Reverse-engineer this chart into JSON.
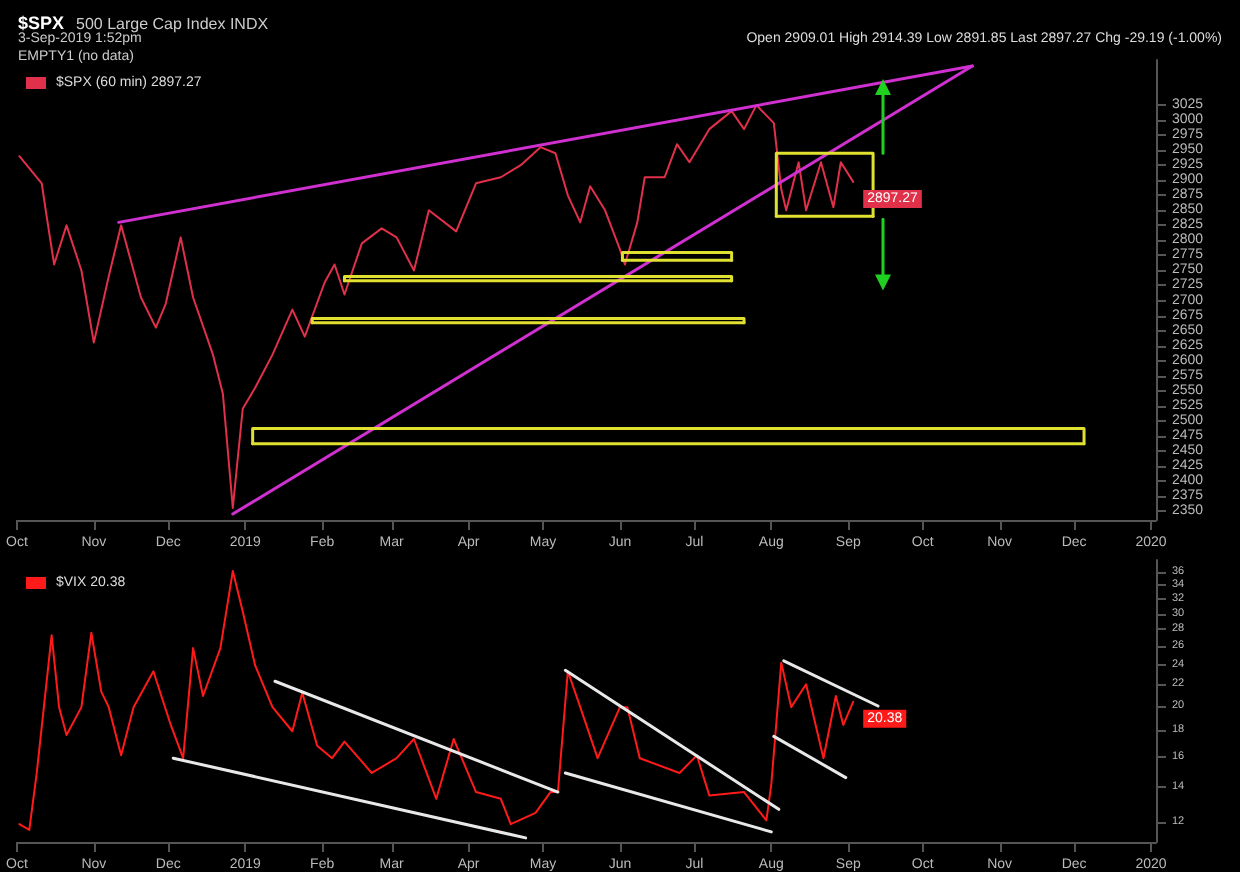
{
  "chart_data": [
    {
      "type": "line",
      "title": "$SPX",
      "subtitle": "500 Large Cap Index INDX",
      "annotations": [
        "3-Sep-2019 1:52pm",
        "Open 2909.01 High 2914.39 Low 2891.85 Last 2897.27 Chg -29.19 (-1.00%)",
        "EMPTY1 (no data)"
      ],
      "legend": "top left",
      "marker": "none",
      "line_style": "solid",
      "xlim": [
        "2018-10-01",
        "2020-01-03"
      ],
      "xticks": [
        {
          "value": "2018-10-01",
          "label": "Oct"
        },
        {
          "value": "2018-11-01",
          "label": "Nov"
        },
        {
          "value": "2018-12-01",
          "label": "Dec"
        },
        {
          "value": "2019-01-01",
          "label": "2019"
        },
        {
          "value": "2019-02-01",
          "label": "Feb"
        },
        {
          "value": "2019-03-01",
          "label": "Mar"
        },
        {
          "value": "2019-04-01",
          "label": "Apr"
        },
        {
          "value": "2019-05-01",
          "label": "May"
        },
        {
          "value": "2019-06-01",
          "label": "Jun"
        },
        {
          "value": "2019-07-01",
          "label": "Jul"
        },
        {
          "value": "2019-08-01",
          "label": "Aug"
        },
        {
          "value": "2019-09-01",
          "label": "Sep"
        },
        {
          "value": "2019-10-01",
          "label": "Oct"
        },
        {
          "value": "2019-11-01",
          "label": "Nov"
        },
        {
          "value": "2019-12-01",
          "label": "Dec"
        },
        {
          "value": "2020-01-01",
          "label": "2020"
        }
      ],
      "ylim": [
        2335,
        3100
      ],
      "yticks": [
        2350,
        2375,
        2400,
        2425,
        2450,
        2475,
        2500,
        2525,
        2550,
        2575,
        2600,
        2625,
        2650,
        2675,
        2700,
        2725,
        2750,
        2775,
        2800,
        2825,
        2850,
        2875,
        2900,
        2925,
        2950,
        2975,
        3000,
        3025
      ],
      "series": [
        {
          "name": "$SPX (60 min) 2897.27",
          "color": "#e0304a",
          "x": [
            "2018-10-02",
            "2018-10-11",
            "2018-10-13",
            "2018-10-16",
            "2018-10-21",
            "2018-10-27",
            "2018-11-01",
            "2018-11-07",
            "2018-11-12",
            "2018-11-20",
            "2018-11-26",
            "2018-11-30",
            "2018-12-06",
            "2018-12-11",
            "2018-12-19",
            "2018-12-23",
            "2018-12-27",
            "2018-12-31",
            "2019-01-05",
            "2019-01-12",
            "2019-01-20",
            "2019-01-25",
            "2019-02-02",
            "2019-02-06",
            "2019-02-10",
            "2019-02-17",
            "2019-02-25",
            "2019-03-03",
            "2019-03-10",
            "2019-03-16",
            "2019-03-27",
            "2019-04-04",
            "2019-04-14",
            "2019-04-22",
            "2019-04-30",
            "2019-05-06",
            "2019-05-11",
            "2019-05-16",
            "2019-05-20",
            "2019-05-26",
            "2019-06-01",
            "2019-06-03",
            "2019-06-08",
            "2019-06-11",
            "2019-06-19",
            "2019-06-24",
            "2019-06-29",
            "2019-07-07",
            "2019-07-16",
            "2019-07-21",
            "2019-07-26",
            "2019-08-02",
            "2019-08-05",
            "2019-08-07",
            "2019-08-12",
            "2019-08-15",
            "2019-08-21",
            "2019-08-26",
            "2019-08-29",
            "2019-09-03"
          ],
          "values": [
            2940,
            2895,
            2840,
            2760,
            2825,
            2750,
            2630,
            2740,
            2825,
            2705,
            2655,
            2695,
            2805,
            2705,
            2610,
            2545,
            2355,
            2520,
            2555,
            2610,
            2685,
            2640,
            2730,
            2760,
            2710,
            2795,
            2820,
            2805,
            2750,
            2850,
            2815,
            2895,
            2905,
            2925,
            2955,
            2945,
            2875,
            2830,
            2890,
            2850,
            2785,
            2760,
            2830,
            2905,
            2905,
            2960,
            2930,
            2985,
            3015,
            2985,
            3025,
            2995,
            2885,
            2850,
            2930,
            2850,
            2930,
            2855,
            2930,
            2897.27
          ],
          "value_labels": [
            null,
            null,
            null,
            null,
            null,
            null,
            null,
            null,
            null,
            null,
            null,
            null,
            null,
            null,
            null,
            null,
            null,
            null,
            null,
            null,
            null,
            null,
            null,
            null,
            null,
            null,
            null,
            null,
            null,
            null,
            null,
            null,
            null,
            null,
            null,
            null,
            null,
            null,
            null,
            null,
            null,
            null,
            null,
            null,
            null,
            null,
            null,
            null,
            null,
            null,
            null,
            null,
            null,
            null,
            null,
            null,
            null,
            null,
            null,
            "2897.27"
          ]
        },
        {
          "type": "line",
          "color": "#d030d0",
          "x": [
            "2018-11-11",
            "2019-10-21"
          ],
          "values": [
            2830,
            3090
          ]
        },
        {
          "type": "line",
          "color": "#d030d0",
          "x": [
            "2018-12-27",
            "2019-10-21"
          ],
          "values": [
            2345,
            3090
          ]
        },
        {
          "type": "line",
          "color": "#e0e030",
          "x": [
            "2019-08-03",
            "2019-08-03",
            "2019-09-11",
            "2019-09-11"
          ],
          "values": [
            2840,
            2945,
            2945,
            2840
          ]
        },
        {
          "type": "line",
          "color": "#e0e030",
          "x": [
            "2019-08-03",
            "2019-09-11"
          ],
          "values": [
            2840,
            2840
          ]
        },
        {
          "type": "line",
          "color": "#e0e030",
          "x": [
            "2019-06-02",
            "2019-06-02",
            "2019-07-16",
            "2019-07-16"
          ],
          "values": [
            2767,
            2780,
            2780,
            2767
          ]
        },
        {
          "type": "line",
          "color": "#e0e030",
          "x": [
            "2019-06-02",
            "2019-07-16"
          ],
          "values": [
            2767,
            2767
          ]
        },
        {
          "type": "line",
          "color": "#e0e030",
          "x": [
            "2019-02-10",
            "2019-02-10",
            "2019-07-16",
            "2019-07-16"
          ],
          "values": [
            2733,
            2740,
            2740,
            2733
          ]
        },
        {
          "type": "line",
          "color": "#e0e030",
          "x": [
            "2019-02-10",
            "2019-07-16"
          ],
          "values": [
            2733,
            2733
          ]
        },
        {
          "type": "line",
          "color": "#e0e030",
          "x": [
            "2019-01-28",
            "2019-01-28",
            "2019-07-21",
            "2019-07-21"
          ],
          "values": [
            2663,
            2670,
            2670,
            2663
          ]
        },
        {
          "type": "line",
          "color": "#e0e030",
          "x": [
            "2019-01-28",
            "2019-07-21"
          ],
          "values": [
            2663,
            2663
          ]
        },
        {
          "type": "line",
          "color": "#e0e030",
          "x": [
            "2019-01-04",
            "2019-01-04",
            "2019-12-05",
            "2019-12-05"
          ],
          "values": [
            2462,
            2487,
            2487,
            2462
          ]
        },
        {
          "type": "line",
          "color": "#e0e030",
          "x": [
            "2019-01-04",
            "2019-12-05"
          ],
          "values": [
            2462,
            2462
          ]
        },
        {
          "type": "line",
          "color": "#20d020",
          "marker": "triangle",
          "x": [
            "2019-09-15",
            "2019-09-15"
          ],
          "values": [
            2945,
            3055
          ]
        },
        {
          "type": "line",
          "color": "#20d020",
          "marker": "triangle",
          "x": [
            "2019-09-15",
            "2019-09-15"
          ],
          "values": [
            2835,
            2730
          ]
        }
      ]
    },
    {
      "type": "line",
      "legend": "top left",
      "marker": "none",
      "line_style": "solid",
      "log": true,
      "xlim": [
        "2018-10-01",
        "2020-01-03"
      ],
      "xticks": [
        {
          "value": "2018-10-01",
          "label": "Oct"
        },
        {
          "value": "2018-11-01",
          "label": "Nov"
        },
        {
          "value": "2018-12-01",
          "label": "Dec"
        },
        {
          "value": "2019-01-01",
          "label": "2019"
        },
        {
          "value": "2019-02-01",
          "label": "Feb"
        },
        {
          "value": "2019-03-01",
          "label": "Mar"
        },
        {
          "value": "2019-04-01",
          "label": "Apr"
        },
        {
          "value": "2019-05-01",
          "label": "May"
        },
        {
          "value": "2019-06-01",
          "label": "Jun"
        },
        {
          "value": "2019-07-01",
          "label": "Jul"
        },
        {
          "value": "2019-08-01",
          "label": "Aug"
        },
        {
          "value": "2019-09-01",
          "label": "Sep"
        },
        {
          "value": "2019-10-01",
          "label": "Oct"
        },
        {
          "value": "2019-11-01",
          "label": "Nov"
        },
        {
          "value": "2019-12-01",
          "label": "Dec"
        },
        {
          "value": "2020-01-01",
          "label": "2020"
        }
      ],
      "ylim": [
        11,
        38
      ],
      "yticks": [
        12,
        14,
        16,
        18,
        20,
        22,
        24,
        26,
        28,
        30,
        32,
        34,
        36
      ],
      "series": [
        {
          "name": "$VIX 20.38",
          "color": "#ff1a1a",
          "x": [
            "2018-10-02",
            "2018-10-06",
            "2018-10-09",
            "2018-10-15",
            "2018-10-18",
            "2018-10-21",
            "2018-10-27",
            "2018-10-31",
            "2018-11-04",
            "2018-11-07",
            "2018-11-12",
            "2018-11-17",
            "2018-11-25",
            "2018-12-02",
            "2018-12-07",
            "2018-12-11",
            "2018-12-15",
            "2018-12-22",
            "2018-12-27",
            "2018-12-31",
            "2019-01-05",
            "2019-01-12",
            "2019-01-20",
            "2019-01-24",
            "2019-01-30",
            "2019-02-05",
            "2019-02-10",
            "2019-02-21",
            "2019-03-03",
            "2019-03-10",
            "2019-03-19",
            "2019-03-26",
            "2019-04-04",
            "2019-04-14",
            "2019-04-18",
            "2019-04-28",
            "2019-05-04",
            "2019-05-07",
            "2019-05-11",
            "2019-05-16",
            "2019-05-23",
            "2019-06-01",
            "2019-06-04",
            "2019-06-09",
            "2019-06-25",
            "2019-07-02",
            "2019-07-07",
            "2019-07-21",
            "2019-07-30",
            "2019-08-01",
            "2019-08-05",
            "2019-08-09",
            "2019-08-15",
            "2019-08-22",
            "2019-08-27",
            "2019-08-30",
            "2019-09-03"
          ],
          "values": [
            11.9,
            11.6,
            14.9,
            27.3,
            19.9,
            17.6,
            19.9,
            27.6,
            21.3,
            19.9,
            16.1,
            19.9,
            23.3,
            18.4,
            15.9,
            25.8,
            20.9,
            25.8,
            36.2,
            30.3,
            23.9,
            19.9,
            17.9,
            21.2,
            16.8,
            15.9,
            17.1,
            14.9,
            15.9,
            17.3,
            13.3,
            17.3,
            13.7,
            13.3,
            11.9,
            12.5,
            13.7,
            13.7,
            23.3,
            19.9,
            15.9,
            19.9,
            19.9,
            15.9,
            14.9,
            16.1,
            13.5,
            13.7,
            12.1,
            14.2,
            24.2,
            19.9,
            22,
            15.9,
            20.9,
            18.4,
            20.38
          ],
          "value_labels": [
            null,
            null,
            null,
            null,
            null,
            null,
            null,
            null,
            null,
            null,
            null,
            null,
            null,
            null,
            null,
            null,
            null,
            null,
            null,
            null,
            null,
            null,
            null,
            null,
            null,
            null,
            null,
            null,
            null,
            null,
            null,
            null,
            null,
            null,
            null,
            null,
            null,
            null,
            null,
            null,
            null,
            null,
            null,
            null,
            null,
            null,
            null,
            null,
            null,
            null,
            null,
            null,
            null,
            null,
            null,
            null,
            "20.38"
          ]
        },
        {
          "type": "line",
          "color": "#e8e8e8",
          "x": [
            "2018-12-03",
            "2019-04-24"
          ],
          "values": [
            15.9,
            11.2
          ]
        },
        {
          "type": "line",
          "color": "#e8e8e8",
          "x": [
            "2019-01-13",
            "2019-05-07"
          ],
          "values": [
            22.3,
            13.7
          ]
        },
        {
          "type": "line",
          "color": "#e8e8e8",
          "x": [
            "2019-05-10",
            "2019-08-04"
          ],
          "values": [
            23.4,
            12.7
          ]
        },
        {
          "type": "line",
          "color": "#e8e8e8",
          "x": [
            "2019-05-10",
            "2019-08-01"
          ],
          "values": [
            14.9,
            11.5
          ]
        },
        {
          "type": "line",
          "color": "#e8e8e8",
          "x": [
            "2019-08-06",
            "2019-09-13"
          ],
          "values": [
            24.4,
            20
          ]
        },
        {
          "type": "line",
          "color": "#e8e8e8",
          "x": [
            "2019-08-02",
            "2019-08-31"
          ],
          "values": [
            17.5,
            14.6
          ]
        }
      ]
    }
  ]
}
